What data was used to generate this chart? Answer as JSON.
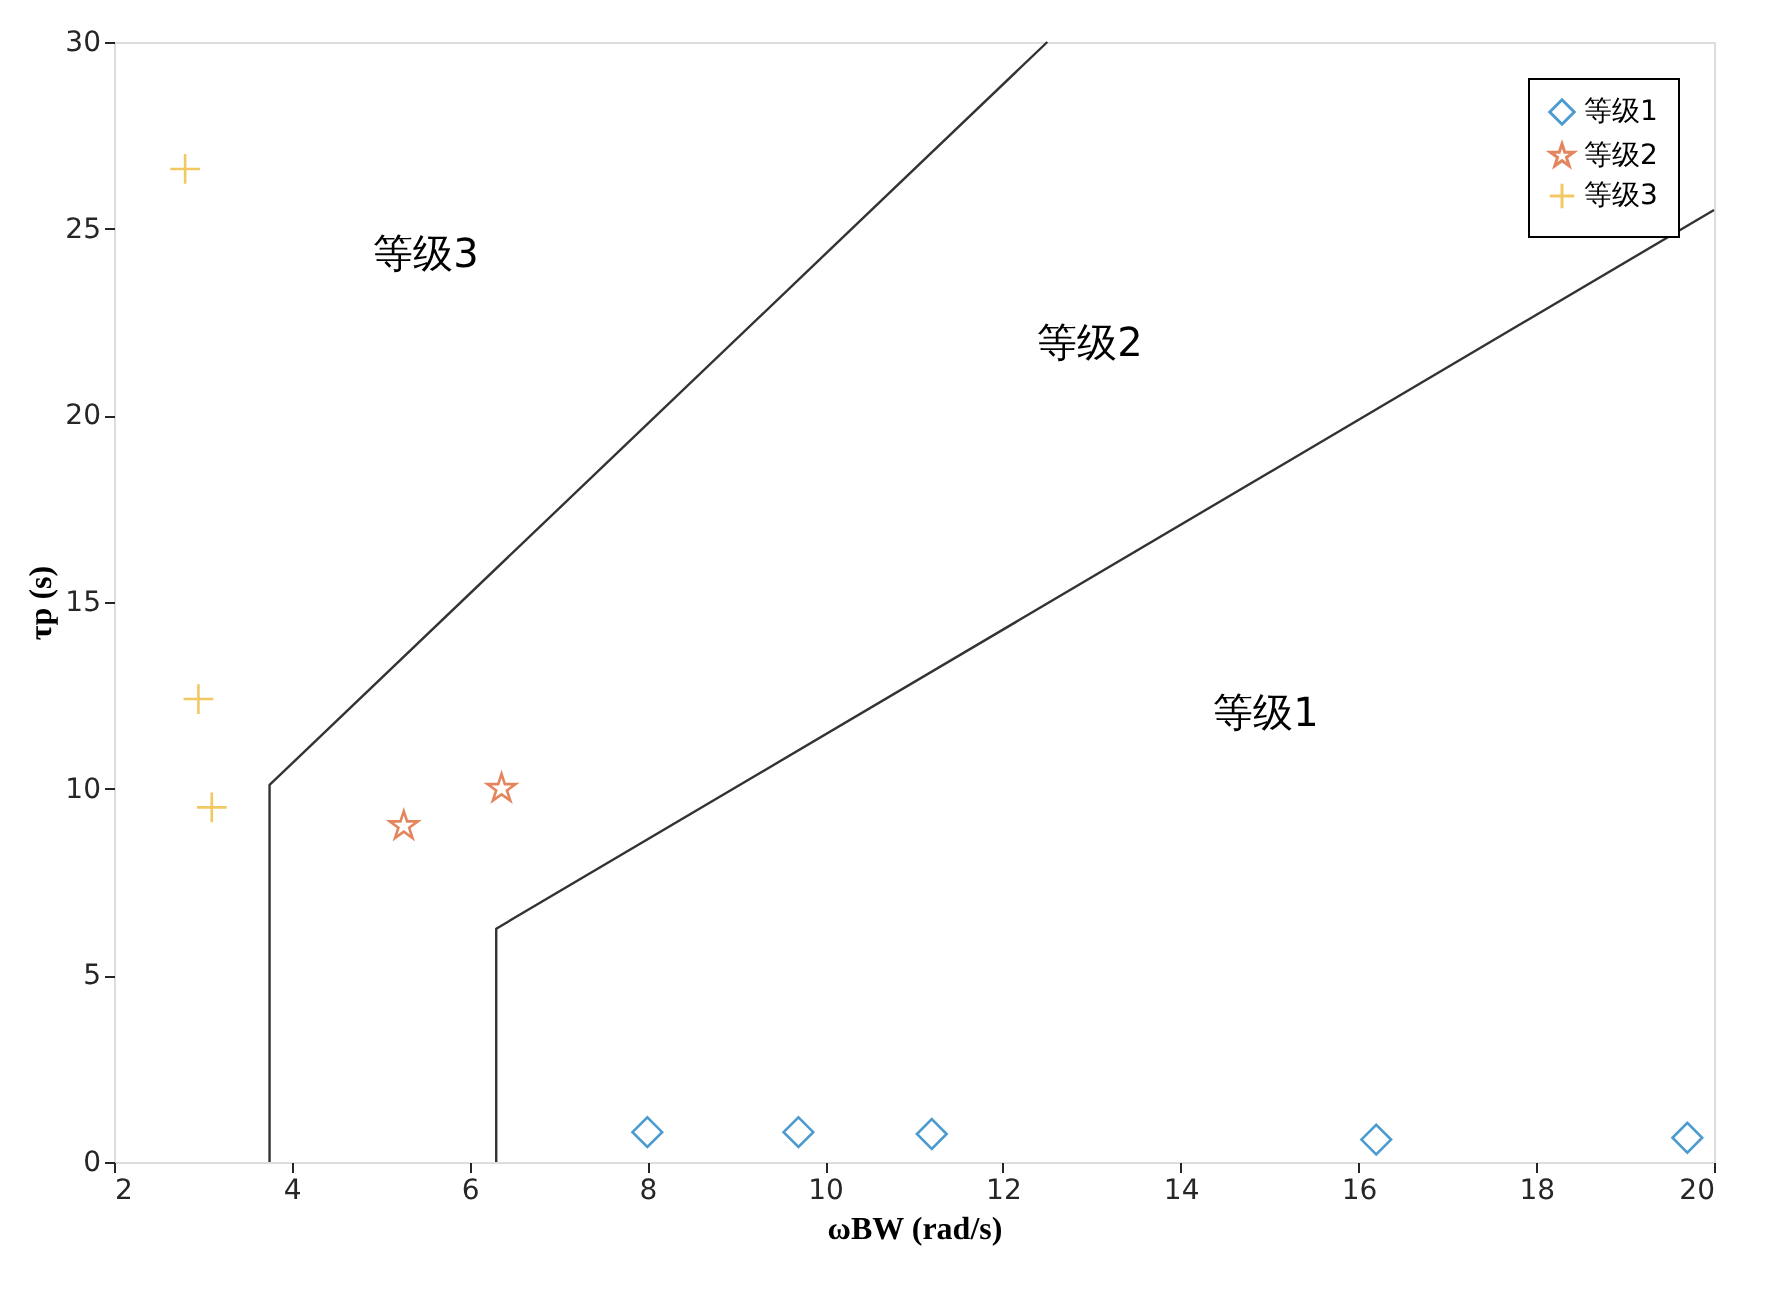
{
  "chart_data": {
    "type": "scatter",
    "xlabel": "ωBW (rad/s)",
    "ylabel": "τp (s)",
    "xlim": [
      2,
      20
    ],
    "ylim": [
      0,
      30
    ],
    "xticks": [
      2,
      4,
      6,
      8,
      10,
      12,
      14,
      16,
      18,
      20
    ],
    "yticks": [
      0,
      5,
      10,
      15,
      20,
      25,
      30
    ],
    "grid": false,
    "legend": "top right",
    "series": [
      {
        "name": "等级1",
        "color": "#0072bd",
        "marker": "diamond",
        "x": [
          8.0,
          9.7,
          11.2,
          16.2,
          19.7
        ],
        "values": [
          0.8,
          0.8,
          0.75,
          0.6,
          0.65
        ]
      },
      {
        "name": "等级2",
        "color": "#d95319",
        "marker": "star",
        "x": [
          5.26,
          6.36
        ],
        "values": [
          9.0,
          10.0
        ]
      },
      {
        "name": "等级3",
        "color": "#edb120",
        "marker": "cross",
        "x": [
          2.8,
          2.95,
          3.1
        ],
        "values": [
          26.6,
          12.4,
          9.5
        ]
      },
      {
        "type": "line",
        "color": "#333333",
        "line_style": "solid",
        "x": [
          3.75,
          3.75,
          12.5
        ],
        "values": [
          0,
          10.1,
          30
        ]
      },
      {
        "type": "line",
        "color": "#333333",
        "line_style": "solid",
        "x": [
          6.3,
          6.3,
          20
        ],
        "values": [
          0,
          6.25,
          25.5
        ]
      }
    ],
    "annotations": [
      "等级3",
      "等级2",
      "等级1"
    ]
  }
}
